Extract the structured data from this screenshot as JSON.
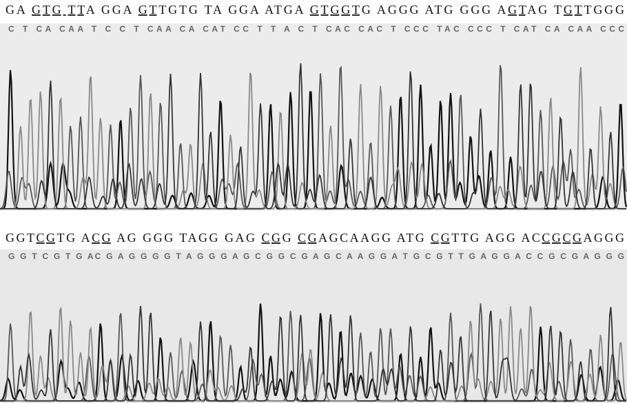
{
  "panels": [
    {
      "sequence": [
        {
          "text": "GA ",
          "underline": false
        },
        {
          "text": "GTG TT",
          "underline": true
        },
        {
          "text": "A GGA ",
          "underline": false
        },
        {
          "text": "GT",
          "underline": true
        },
        {
          "text": "TGTG TA GGA ATGA ",
          "underline": false
        },
        {
          "text": "GTGGT",
          "underline": true
        },
        {
          "text": "G AGGG ATG GGG A",
          "underline": false
        },
        {
          "text": "GT",
          "underline": true
        },
        {
          "text": "AG T",
          "underline": false
        },
        {
          "text": "GT",
          "underline": true
        },
        {
          "text": "TGGG",
          "underline": false
        }
      ],
      "trace_calls": "C T CA CAA T C C T CAA CA CAT CC T T A C T CAC CAC T CCC TAC CCC T CAT CA CAA CCC"
    },
    {
      "sequence": [
        {
          "text": "GGT",
          "underline": false
        },
        {
          "text": "CG",
          "underline": true
        },
        {
          "text": "TG A",
          "underline": false
        },
        {
          "text": "CG",
          "underline": true
        },
        {
          "text": " AG GGG TAGG GAG ",
          "underline": false
        },
        {
          "text": "CG",
          "underline": true
        },
        {
          "text": "G ",
          "underline": false
        },
        {
          "text": "CG",
          "underline": true
        },
        {
          "text": "AGCAAGG ATG ",
          "underline": false
        },
        {
          "text": "CG",
          "underline": true
        },
        {
          "text": "TTG AGG AC",
          "underline": false
        },
        {
          "text": "CGCG",
          "underline": true
        },
        {
          "text": "AGGG",
          "underline": false
        }
      ],
      "trace_calls": "G G T C G T G AC G A G G G G T A G G G A G C G G C G A G C A A G G A T G C G T T G A G G A C C G C G A G G G"
    }
  ]
}
